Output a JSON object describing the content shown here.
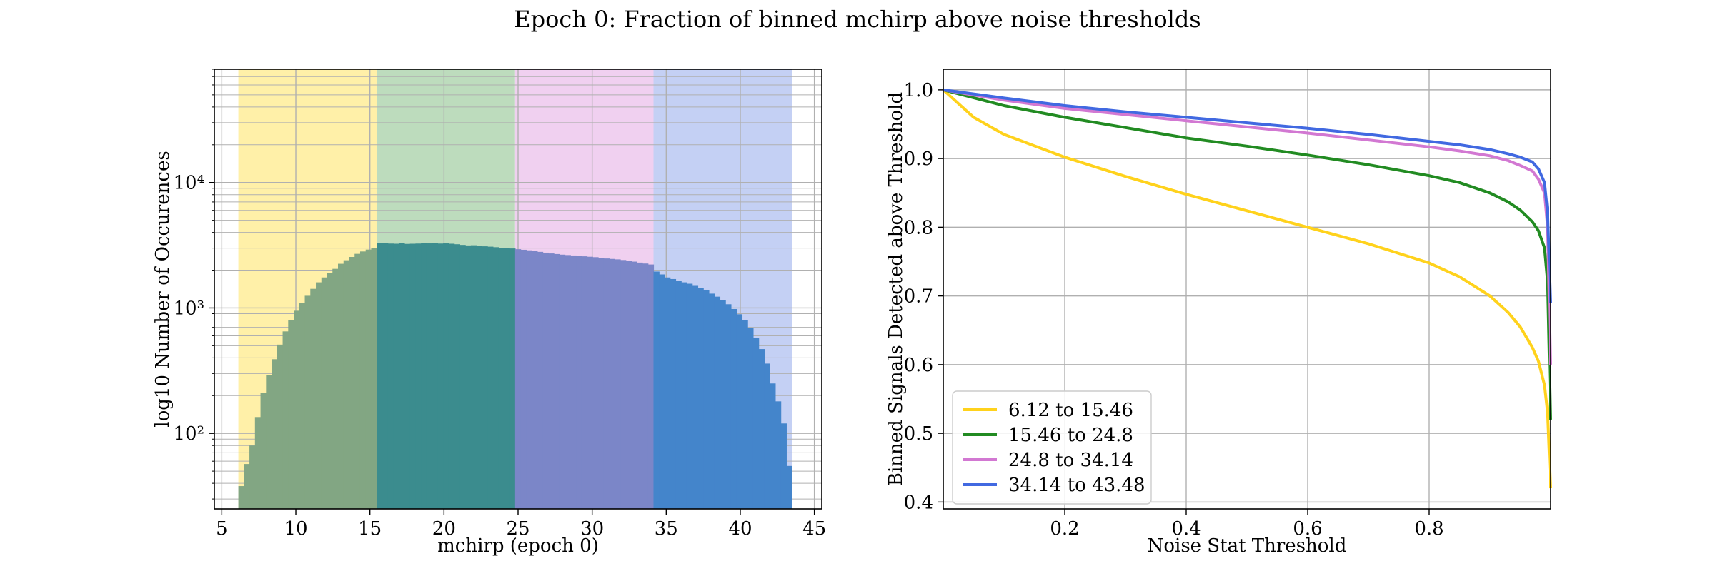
{
  "figure": {
    "title": "Epoch 0: Fraction of binned mchirp above noise thresholds"
  },
  "chart_data": [
    {
      "type": "bar",
      "title": "",
      "xlabel": "mchirp (epoch 0)",
      "ylabel": "log10 Number of Occurences",
      "xlim": [
        4.5,
        45.5
      ],
      "ylim": [
        25,
        80000
      ],
      "yscale": "log",
      "grid": true,
      "xticks": [
        5,
        10,
        15,
        20,
        25,
        30,
        35,
        40,
        45
      ],
      "yticks": [
        100,
        1000,
        10000
      ],
      "ytick_labels": [
        "10²",
        "10³",
        "10⁴"
      ],
      "bands": [
        {
          "x0": 6.12,
          "x1": 15.46,
          "color": "#fff0a8"
        },
        {
          "x0": 15.46,
          "x1": 24.8,
          "color": "#bddcbd"
        },
        {
          "x0": 24.8,
          "x1": 34.14,
          "color": "#f0d0f0"
        },
        {
          "x0": 34.14,
          "x1": 43.48,
          "color": "#c4d0f4"
        }
      ],
      "series": [
        {
          "x_start": 6.12,
          "bin_width": 0.3736,
          "values": [
            38,
            57,
            80,
            135,
            210,
            290,
            390,
            510,
            650,
            800,
            950,
            1100,
            1250,
            1420,
            1600,
            1750,
            1900,
            2050,
            2250,
            2400,
            2550,
            2700,
            2820,
            2920,
            3000
          ],
          "color": "#82a683"
        },
        {
          "x_start": 15.46,
          "bin_width": 0.3736,
          "values": [
            3280,
            3300,
            3260,
            3250,
            3280,
            3240,
            3250,
            3260,
            3290,
            3270,
            3300,
            3260,
            3270,
            3250,
            3220,
            3180,
            3150,
            3160,
            3120,
            3100,
            3080,
            3050,
            3020,
            3000,
            2980
          ],
          "color": "#3b8c8e"
        },
        {
          "x_start": 24.8,
          "bin_width": 0.3736,
          "values": [
            2940,
            2910,
            2880,
            2850,
            2800,
            2760,
            2720,
            2690,
            2660,
            2640,
            2620,
            2600,
            2580,
            2560,
            2540,
            2510,
            2480,
            2460,
            2440,
            2410,
            2380,
            2340,
            2300,
            2260,
            2220
          ],
          "color": "#7b86c8"
        },
        {
          "x_start": 34.14,
          "bin_width": 0.3736,
          "values": [
            1950,
            1850,
            1750,
            1700,
            1650,
            1600,
            1560,
            1500,
            1450,
            1380,
            1300,
            1230,
            1150,
            1070,
            980,
            890,
            800,
            690,
            580,
            470,
            360,
            250,
            180,
            120,
            55
          ],
          "color": "#4485cb"
        }
      ]
    },
    {
      "type": "line",
      "title": "",
      "xlabel": "Noise Stat Threshold",
      "ylabel": "Binned Signals Detected above Threshold",
      "xlim": [
        0,
        1
      ],
      "ylim": [
        0.39,
        1.03
      ],
      "grid": true,
      "legend": "lower-left",
      "xticks": [
        0.2,
        0.4,
        0.6,
        0.8
      ],
      "yticks": [
        0.4,
        0.5,
        0.6,
        0.7,
        0.8,
        0.9,
        1.0
      ],
      "series": [
        {
          "name": "6.12 to 15.46",
          "color": "#ffd21c",
          "x": [
            0,
            0.05,
            0.1,
            0.2,
            0.3,
            0.4,
            0.5,
            0.6,
            0.7,
            0.8,
            0.85,
            0.9,
            0.93,
            0.95,
            0.97,
            0.98,
            0.99,
            0.995,
            1.0
          ],
          "y": [
            1.0,
            0.96,
            0.935,
            0.902,
            0.874,
            0.848,
            0.824,
            0.8,
            0.776,
            0.748,
            0.728,
            0.7,
            0.676,
            0.655,
            0.625,
            0.605,
            0.57,
            0.53,
            0.42
          ]
        },
        {
          "name": "15.46 to 24.8",
          "color": "#228b22",
          "x": [
            0,
            0.1,
            0.2,
            0.3,
            0.4,
            0.5,
            0.6,
            0.7,
            0.8,
            0.85,
            0.9,
            0.93,
            0.95,
            0.97,
            0.98,
            0.99,
            0.995,
            1.0
          ],
          "y": [
            1.0,
            0.977,
            0.96,
            0.945,
            0.93,
            0.918,
            0.905,
            0.891,
            0.875,
            0.865,
            0.85,
            0.837,
            0.825,
            0.808,
            0.795,
            0.77,
            0.72,
            0.52
          ]
        },
        {
          "name": "24.8 to 34.14",
          "color": "#d278d2",
          "x": [
            0,
            0.1,
            0.2,
            0.3,
            0.4,
            0.5,
            0.6,
            0.7,
            0.8,
            0.85,
            0.9,
            0.93,
            0.95,
            0.97,
            0.98,
            0.99,
            0.995,
            1.0
          ],
          "y": [
            1.0,
            0.985,
            0.973,
            0.964,
            0.955,
            0.946,
            0.937,
            0.927,
            0.917,
            0.911,
            0.904,
            0.897,
            0.89,
            0.882,
            0.87,
            0.85,
            0.8,
            0.6
          ]
        },
        {
          "name": "34.14 to 43.48",
          "color": "#4169e1",
          "x": [
            0,
            0.1,
            0.2,
            0.3,
            0.4,
            0.5,
            0.6,
            0.7,
            0.8,
            0.85,
            0.9,
            0.93,
            0.95,
            0.97,
            0.98,
            0.99,
            0.995,
            1.0
          ],
          "y": [
            1.0,
            0.988,
            0.977,
            0.968,
            0.96,
            0.952,
            0.944,
            0.935,
            0.925,
            0.92,
            0.913,
            0.907,
            0.902,
            0.895,
            0.885,
            0.865,
            0.82,
            0.69
          ]
        }
      ]
    }
  ]
}
